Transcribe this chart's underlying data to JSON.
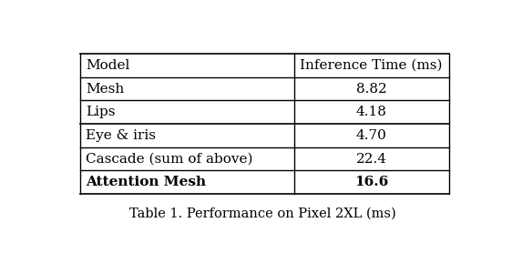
{
  "title": "Table 1. Performance on Pixel 2XL (ms)",
  "col_headers": [
    "Model",
    "Inference Time (ms)"
  ],
  "rows": [
    [
      "Mesh",
      "8.82"
    ],
    [
      "Lips",
      "4.18"
    ],
    [
      "Eye & iris",
      "4.70"
    ],
    [
      "Cascade (sum of above)",
      "22.4"
    ],
    [
      "Attention Mesh",
      "16.6"
    ]
  ],
  "bold_rows": [
    4
  ],
  "section_break_after": 3,
  "background_color": "#ffffff",
  "col_split": 0.58,
  "figsize": [
    5.62,
    2.78
  ],
  "dpi": 100,
  "font_size": 11,
  "caption_font_size": 10.5
}
